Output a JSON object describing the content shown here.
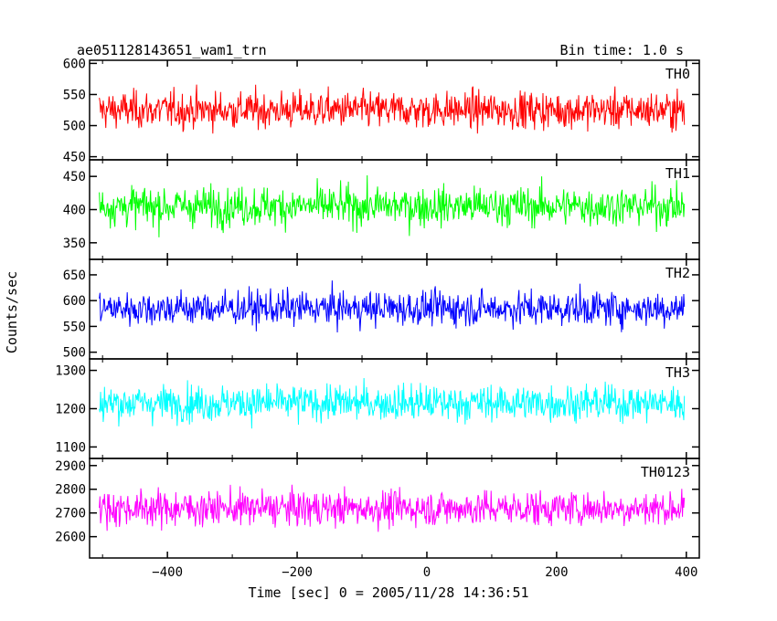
{
  "chart_data": {
    "type": "line",
    "title": "ae051128143651_wam1_trn",
    "subtitle": "Bin time: 1.0 s",
    "xlabel": "Time [sec] 0 = 2005/11/28 14:36:51",
    "ylabel": "Counts/sec",
    "xlim": [
      -520,
      420
    ],
    "xticks": [
      -400,
      -200,
      0,
      200,
      400
    ],
    "x_range_data": [
      -505,
      397
    ],
    "bin_time_s": 1.0,
    "panels": [
      {
        "name": "TH0",
        "color": "#ff0000",
        "ylim": [
          445,
          605
        ],
        "yticks": [
          450,
          500,
          550,
          600
        ],
        "mean": 525,
        "spread": 22
      },
      {
        "name": "TH1",
        "color": "#00ff00",
        "ylim": [
          325,
          475
        ],
        "yticks": [
          350,
          400,
          450
        ],
        "mean": 405,
        "spread": 22
      },
      {
        "name": "TH2",
        "color": "#0000ff",
        "ylim": [
          487,
          680
        ],
        "yticks": [
          500,
          550,
          600,
          650
        ],
        "mean": 585,
        "spread": 25
      },
      {
        "name": "TH3",
        "color": "#00ffff",
        "ylim": [
          1070,
          1330
        ],
        "yticks": [
          1100,
          1200,
          1300
        ],
        "mean": 1215,
        "spread": 35
      },
      {
        "name": "TH0123",
        "color": "#ff00ff",
        "ylim": [
          2510,
          2930
        ],
        "yticks": [
          2600,
          2700,
          2800,
          2900
        ],
        "mean": 2720,
        "spread": 55
      }
    ]
  }
}
